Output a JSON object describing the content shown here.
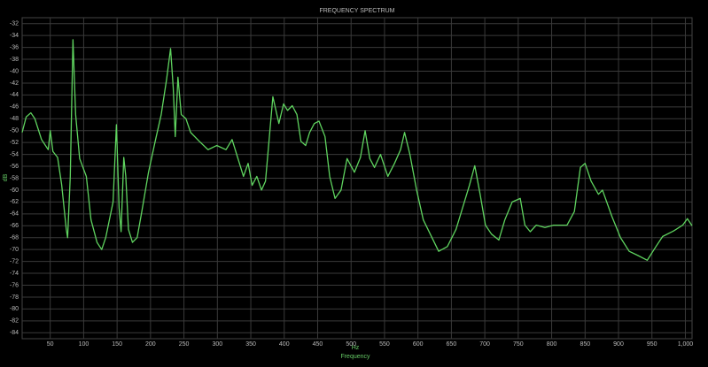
{
  "chart_data": {
    "type": "line",
    "title": "FREQUENCY SPECTRUM",
    "y_label": "dB",
    "x_unit": "Hz",
    "x_label": "Frequency",
    "color": "#5fd35f",
    "grid": true,
    "xlim": [
      8,
      1010
    ],
    "ylim": [
      -85,
      -31
    ],
    "xticks": [
      50,
      100,
      150,
      200,
      250,
      300,
      350,
      400,
      450,
      500,
      550,
      600,
      650,
      700,
      750,
      800,
      850,
      900,
      950,
      {
        "value": 1000,
        "label": "1,000"
      }
    ],
    "yticks": [
      -32,
      -34,
      -36,
      -38,
      -40,
      -42,
      -44,
      -46,
      -48,
      -50,
      -52,
      -54,
      -56,
      -58,
      -60,
      -62,
      -64,
      -66,
      -68,
      -70,
      -72,
      -74,
      -76,
      -78,
      -80,
      -82,
      -84
    ],
    "x": [
      8,
      14,
      21,
      27,
      37,
      47,
      50,
      54,
      61,
      67,
      74,
      76,
      80,
      84,
      88,
      94,
      104,
      111,
      120,
      127,
      133,
      144,
      149,
      153,
      156,
      160,
      163,
      167,
      173,
      180,
      187,
      197,
      207,
      216,
      224,
      230,
      234,
      237,
      241,
      246,
      253,
      260,
      273,
      286,
      299,
      313,
      322,
      333,
      339,
      346,
      352,
      359,
      366,
      372,
      383,
      392,
      399,
      405,
      412,
      419,
      425,
      432,
      438,
      445,
      452,
      461,
      468,
      476,
      485,
      494,
      505,
      514,
      521,
      528,
      535,
      544,
      555,
      565,
      574,
      580,
      588,
      598,
      608,
      621,
      631,
      644,
      657,
      667,
      677,
      685,
      693,
      701,
      710,
      721,
      730,
      741,
      753,
      760,
      768,
      777,
      790,
      803,
      823,
      834,
      843,
      850,
      859,
      870,
      876,
      890,
      903,
      916,
      929,
      943,
      956,
      966,
      982,
      996,
      1003,
      1010
    ],
    "values": [
      -50.3,
      -47.7,
      -47,
      -48,
      -51.5,
      -53.2,
      -50,
      -53.5,
      -54.5,
      -59,
      -66.6,
      -68,
      -57.7,
      -34.7,
      -47.3,
      -54.7,
      -57.7,
      -65,
      -68.8,
      -70,
      -68,
      -62,
      -49,
      -63,
      -67,
      -54.5,
      -57.7,
      -66.6,
      -68.8,
      -68,
      -63.6,
      -57,
      -51.8,
      -47.3,
      -41.4,
      -36.2,
      -42.8,
      -51,
      -41,
      -47.3,
      -48,
      -50.3,
      -51.8,
      -53.2,
      -52.5,
      -53.2,
      -51.5,
      -55.5,
      -57.7,
      -55.5,
      -59.2,
      -57.7,
      -60,
      -58.5,
      -44.3,
      -48.8,
      -45.5,
      -46.6,
      -45.8,
      -47.3,
      -51.8,
      -52.5,
      -50.3,
      -48.8,
      -48.4,
      -51,
      -57.7,
      -61.4,
      -60,
      -54.7,
      -57,
      -54.5,
      -50,
      -54.7,
      -56.2,
      -54,
      -57.7,
      -55.5,
      -53.2,
      -50.3,
      -54,
      -60,
      -65,
      -68,
      -70.3,
      -69.5,
      -66.6,
      -62.9,
      -59.2,
      -55.9,
      -60.7,
      -65.9,
      -67.4,
      -68.4,
      -65,
      -62,
      -61.4,
      -65.9,
      -67,
      -65.9,
      -66.3,
      -65.9,
      -65.9,
      -63.6,
      -56.2,
      -55.5,
      -58.5,
      -60.7,
      -60,
      -64.4,
      -68,
      -70.3,
      -71,
      -71.8,
      -69.5,
      -67.8,
      -66.9,
      -65.9,
      -64.8,
      -66
    ]
  }
}
